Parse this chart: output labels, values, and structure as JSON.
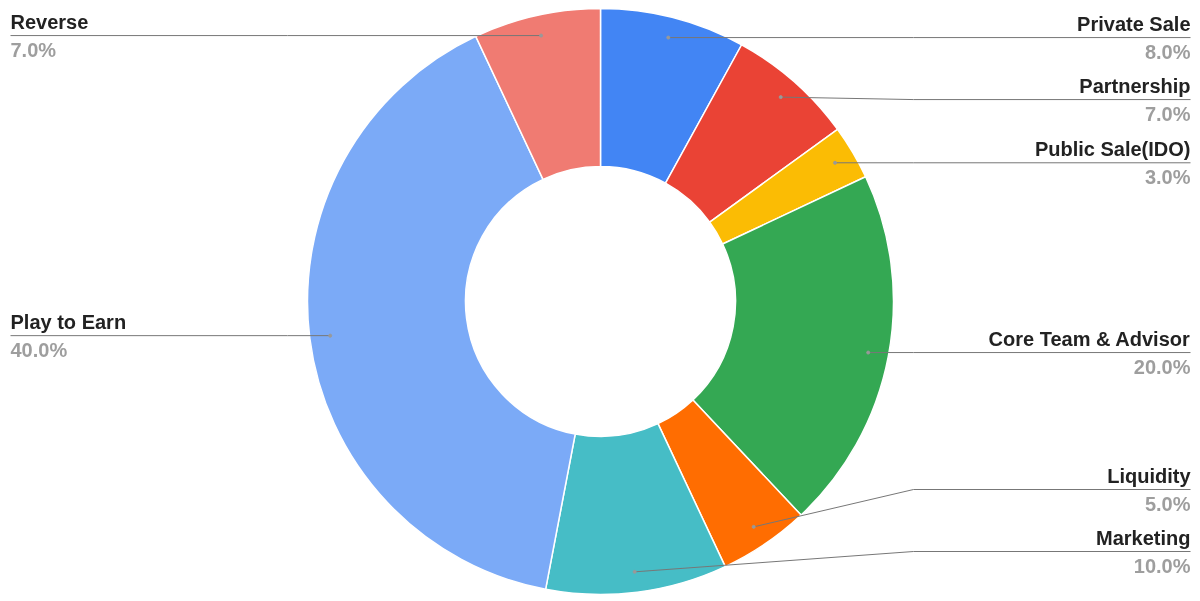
{
  "chart_data": {
    "type": "donut",
    "categories": [
      "Private Sale",
      "Partnership",
      "Public Sale(IDO)",
      "Core Team & Advisor",
      "Liquidity",
      "Marketing",
      "Play to Earn",
      "Reverse"
    ],
    "values": [
      8,
      7,
      3,
      20,
      5,
      10,
      40,
      7
    ],
    "value_labels": [
      "8.0%",
      "7.0%",
      "3.0%",
      "20.0%",
      "5.0%",
      "10.0%",
      "40.0%",
      "7.0%"
    ],
    "colors": [
      "#4285f4",
      "#ea4335",
      "#fbbc04",
      "#34a853",
      "#ff6d01",
      "#46bdc6",
      "#7baaf7",
      "#f07b72"
    ]
  }
}
